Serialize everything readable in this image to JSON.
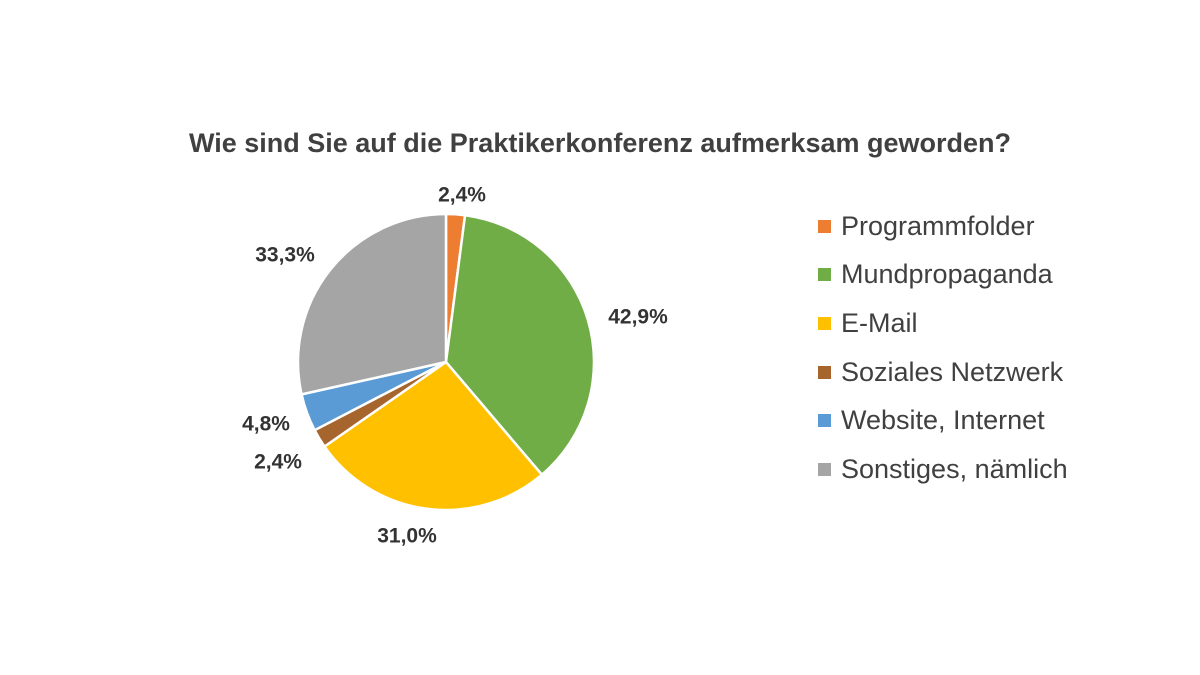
{
  "chart_data": {
    "type": "pie",
    "title": "Wie sind Sie auf die Praktikerkonferenz aufmerksam geworden?",
    "categories": [
      "Programmfolder",
      "Mundpropaganda",
      "E-Mail",
      "Soziales Netzwerk",
      "Website, Internet",
      "Sonstiges, nämlich"
    ],
    "values": [
      2.4,
      42.9,
      31.0,
      2.4,
      4.8,
      33.3
    ],
    "labels": [
      "2,4%",
      "42,9%",
      "31,0%",
      "2,4%",
      "4,8%",
      "33,3%"
    ],
    "colors": [
      "#ED7D31",
      "#70AD47",
      "#FFC000",
      "#A5652D",
      "#5B9BD5",
      "#A5A5A5"
    ],
    "legend_position": "right",
    "start_angle": "12 o'clock",
    "direction": "clockwise"
  }
}
